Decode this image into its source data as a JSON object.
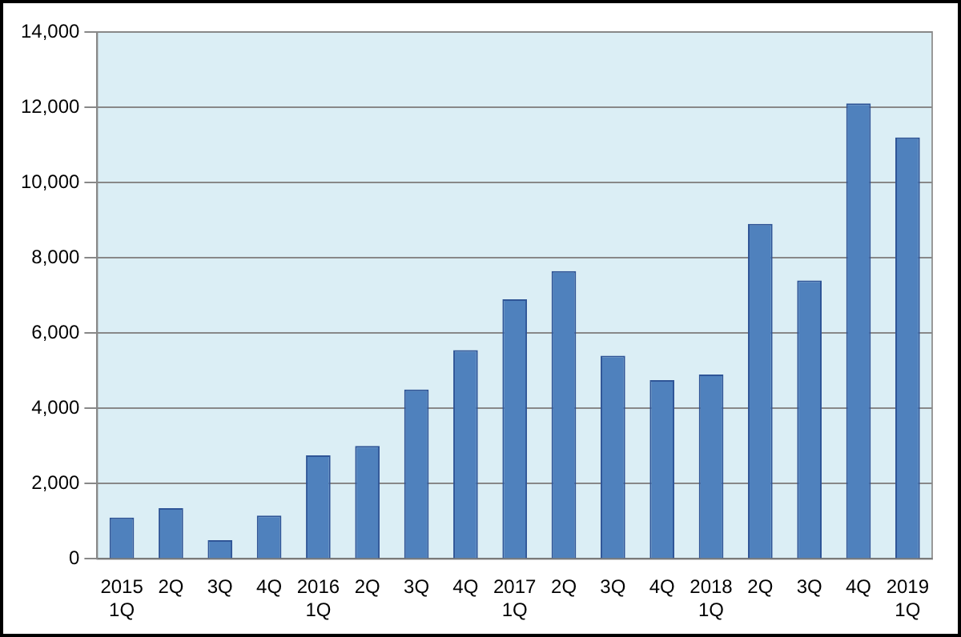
{
  "chart_data": {
    "type": "bar",
    "categories": [
      "2015\n1Q",
      "2Q",
      "3Q",
      "4Q",
      "2016\n1Q",
      "2Q",
      "3Q",
      "4Q",
      "2017\n1Q",
      "2Q",
      "3Q",
      "4Q",
      "2018\n1Q",
      "2Q",
      "3Q",
      "4Q",
      "2019\n1Q"
    ],
    "values": [
      1100,
      1350,
      500,
      1150,
      2750,
      3000,
      4500,
      5550,
      6900,
      7650,
      5400,
      4750,
      4900,
      8900,
      7400,
      12100,
      11200
    ],
    "color": "#4f81bd",
    "ylim": [
      0,
      14000
    ],
    "yticks": [
      {
        "value": 0,
        "label": "0"
      },
      {
        "value": 2000,
        "label": "2,000"
      },
      {
        "value": 4000,
        "label": "4,000"
      },
      {
        "value": 6000,
        "label": "6,000"
      },
      {
        "value": 8000,
        "label": "8,000"
      },
      {
        "value": 10000,
        "label": "10,000"
      },
      {
        "value": 12000,
        "label": "12,000"
      },
      {
        "value": 14000,
        "label": "14,000"
      }
    ],
    "grid": "y",
    "legend": false
  }
}
